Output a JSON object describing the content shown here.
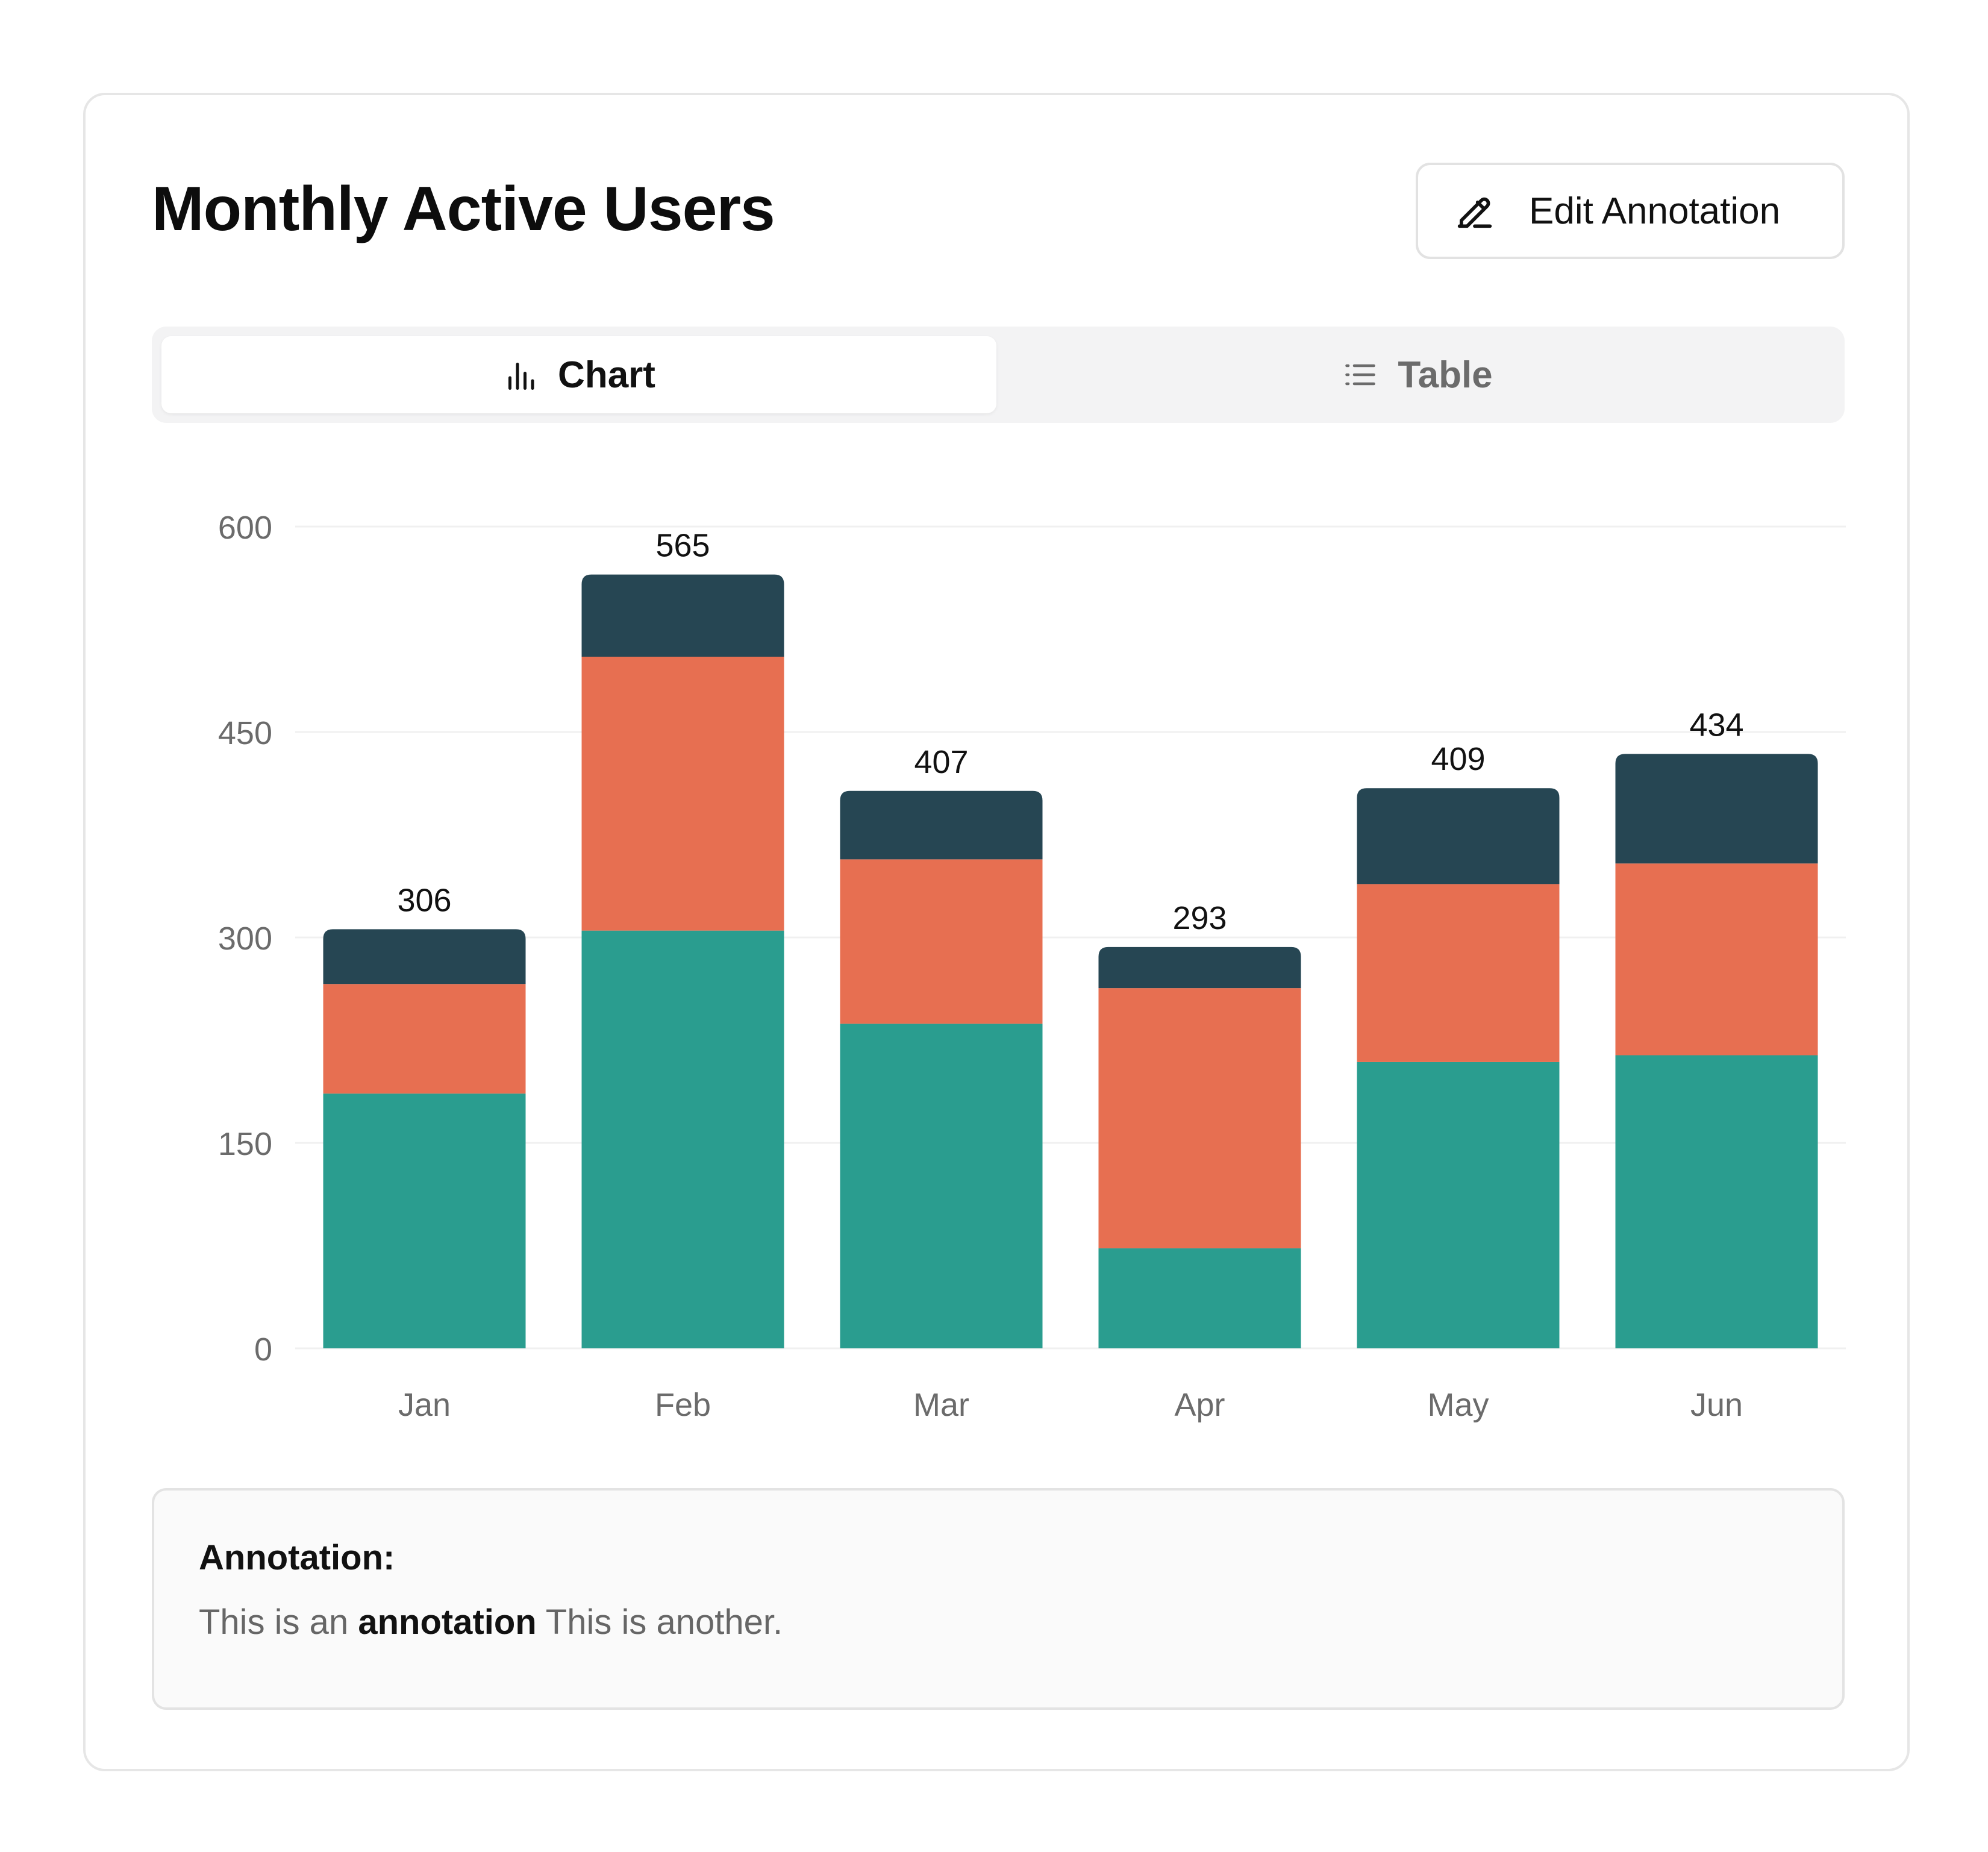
{
  "card": {
    "title": "Monthly Active Users",
    "edit_button": {
      "label": "Edit Annotation",
      "icon": "pencil-icon"
    }
  },
  "tabs": [
    {
      "label": "Chart",
      "icon": "bar-chart-icon",
      "active": true
    },
    {
      "label": "Table",
      "icon": "list-icon",
      "active": false
    }
  ],
  "annotation": {
    "title": "Annotation:",
    "text_before": "This is an ",
    "text_bold": "annotation",
    "text_after": " This is another."
  },
  "colors": {
    "series": [
      "#2a9d8f",
      "#e76f51",
      "#264653"
    ],
    "grid": "#f0f0f0",
    "tick_text": "#6b6b6b",
    "total_text": "#111111"
  },
  "chart_data": {
    "type": "bar",
    "stacked": true,
    "categories": [
      "Jan",
      "Feb",
      "Mar",
      "Apr",
      "May",
      "Jun"
    ],
    "series": [
      {
        "values": [
          186,
          305,
          237,
          73,
          209,
          214
        ]
      },
      {
        "values": [
          80,
          200,
          120,
          190,
          130,
          140
        ]
      },
      {
        "values": [
          40,
          60,
          50,
          30,
          70,
          80
        ]
      }
    ],
    "totals": [
      306,
      565,
      407,
      293,
      409,
      434
    ],
    "ylim": [
      0,
      600
    ],
    "yticks": [
      0,
      150,
      300,
      450,
      600
    ],
    "grid": true,
    "legend": false
  }
}
